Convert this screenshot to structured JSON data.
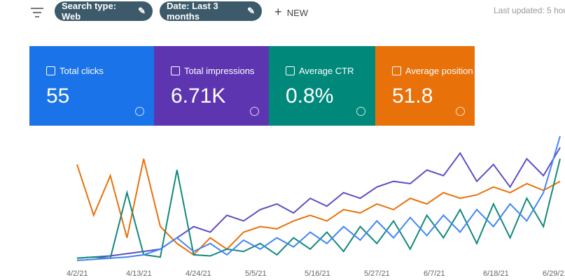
{
  "toolbar": {
    "chips": [
      "Search type: Web",
      "Date: Last 3 months"
    ],
    "new_button": "NEW",
    "last_updated": "Last updated: 5 hou"
  },
  "cards": [
    {
      "label": "Total clicks",
      "value": "55",
      "color": "#1a73e8"
    },
    {
      "label": "Total impressions",
      "value": "6.71K",
      "color": "#5e35b1"
    },
    {
      "label": "Average CTR",
      "value": "0.8%",
      "color": "#00897b"
    },
    {
      "label": "Average position",
      "value": "51.8",
      "color": "#e8710a"
    }
  ],
  "chart": {
    "type": "line",
    "x_labels": [
      "4/2/21",
      "4/13/21",
      "4/24/21",
      "5/5/21",
      "5/16/21",
      "5/27/21",
      "6/7/21",
      "6/18/21",
      "6/29/21"
    ],
    "series": [
      {
        "color": "#e8710a",
        "values": [
          85,
          40,
          75,
          20,
          90,
          30,
          15,
          5,
          20,
          10,
          25,
          30,
          28,
          35,
          40,
          35,
          45,
          42,
          50,
          45,
          55,
          50,
          60,
          55,
          58,
          65,
          60,
          68,
          62,
          70
        ]
      },
      {
        "color": "#5c4fc4",
        "values": [
          2,
          3,
          4,
          6,
          8,
          10,
          20,
          30,
          25,
          40,
          35,
          45,
          50,
          42,
          55,
          48,
          60,
          55,
          65,
          70,
          68,
          80,
          75,
          95,
          70,
          85,
          65,
          90,
          75,
          100
        ]
      },
      {
        "color": "#12897b",
        "values": [
          2,
          3,
          2,
          60,
          5,
          3,
          80,
          5,
          4,
          10,
          8,
          15,
          5,
          20,
          10,
          25,
          8,
          30,
          15,
          35,
          10,
          40,
          20,
          45,
          15,
          50,
          20,
          55,
          30,
          90
        ]
      },
      {
        "color": "#4285f4",
        "values": [
          0,
          1,
          2,
          3,
          5,
          10,
          20,
          8,
          15,
          5,
          18,
          10,
          20,
          12,
          25,
          15,
          30,
          18,
          35,
          20,
          38,
          22,
          40,
          25,
          45,
          30,
          50,
          35,
          60,
          110
        ]
      }
    ]
  }
}
